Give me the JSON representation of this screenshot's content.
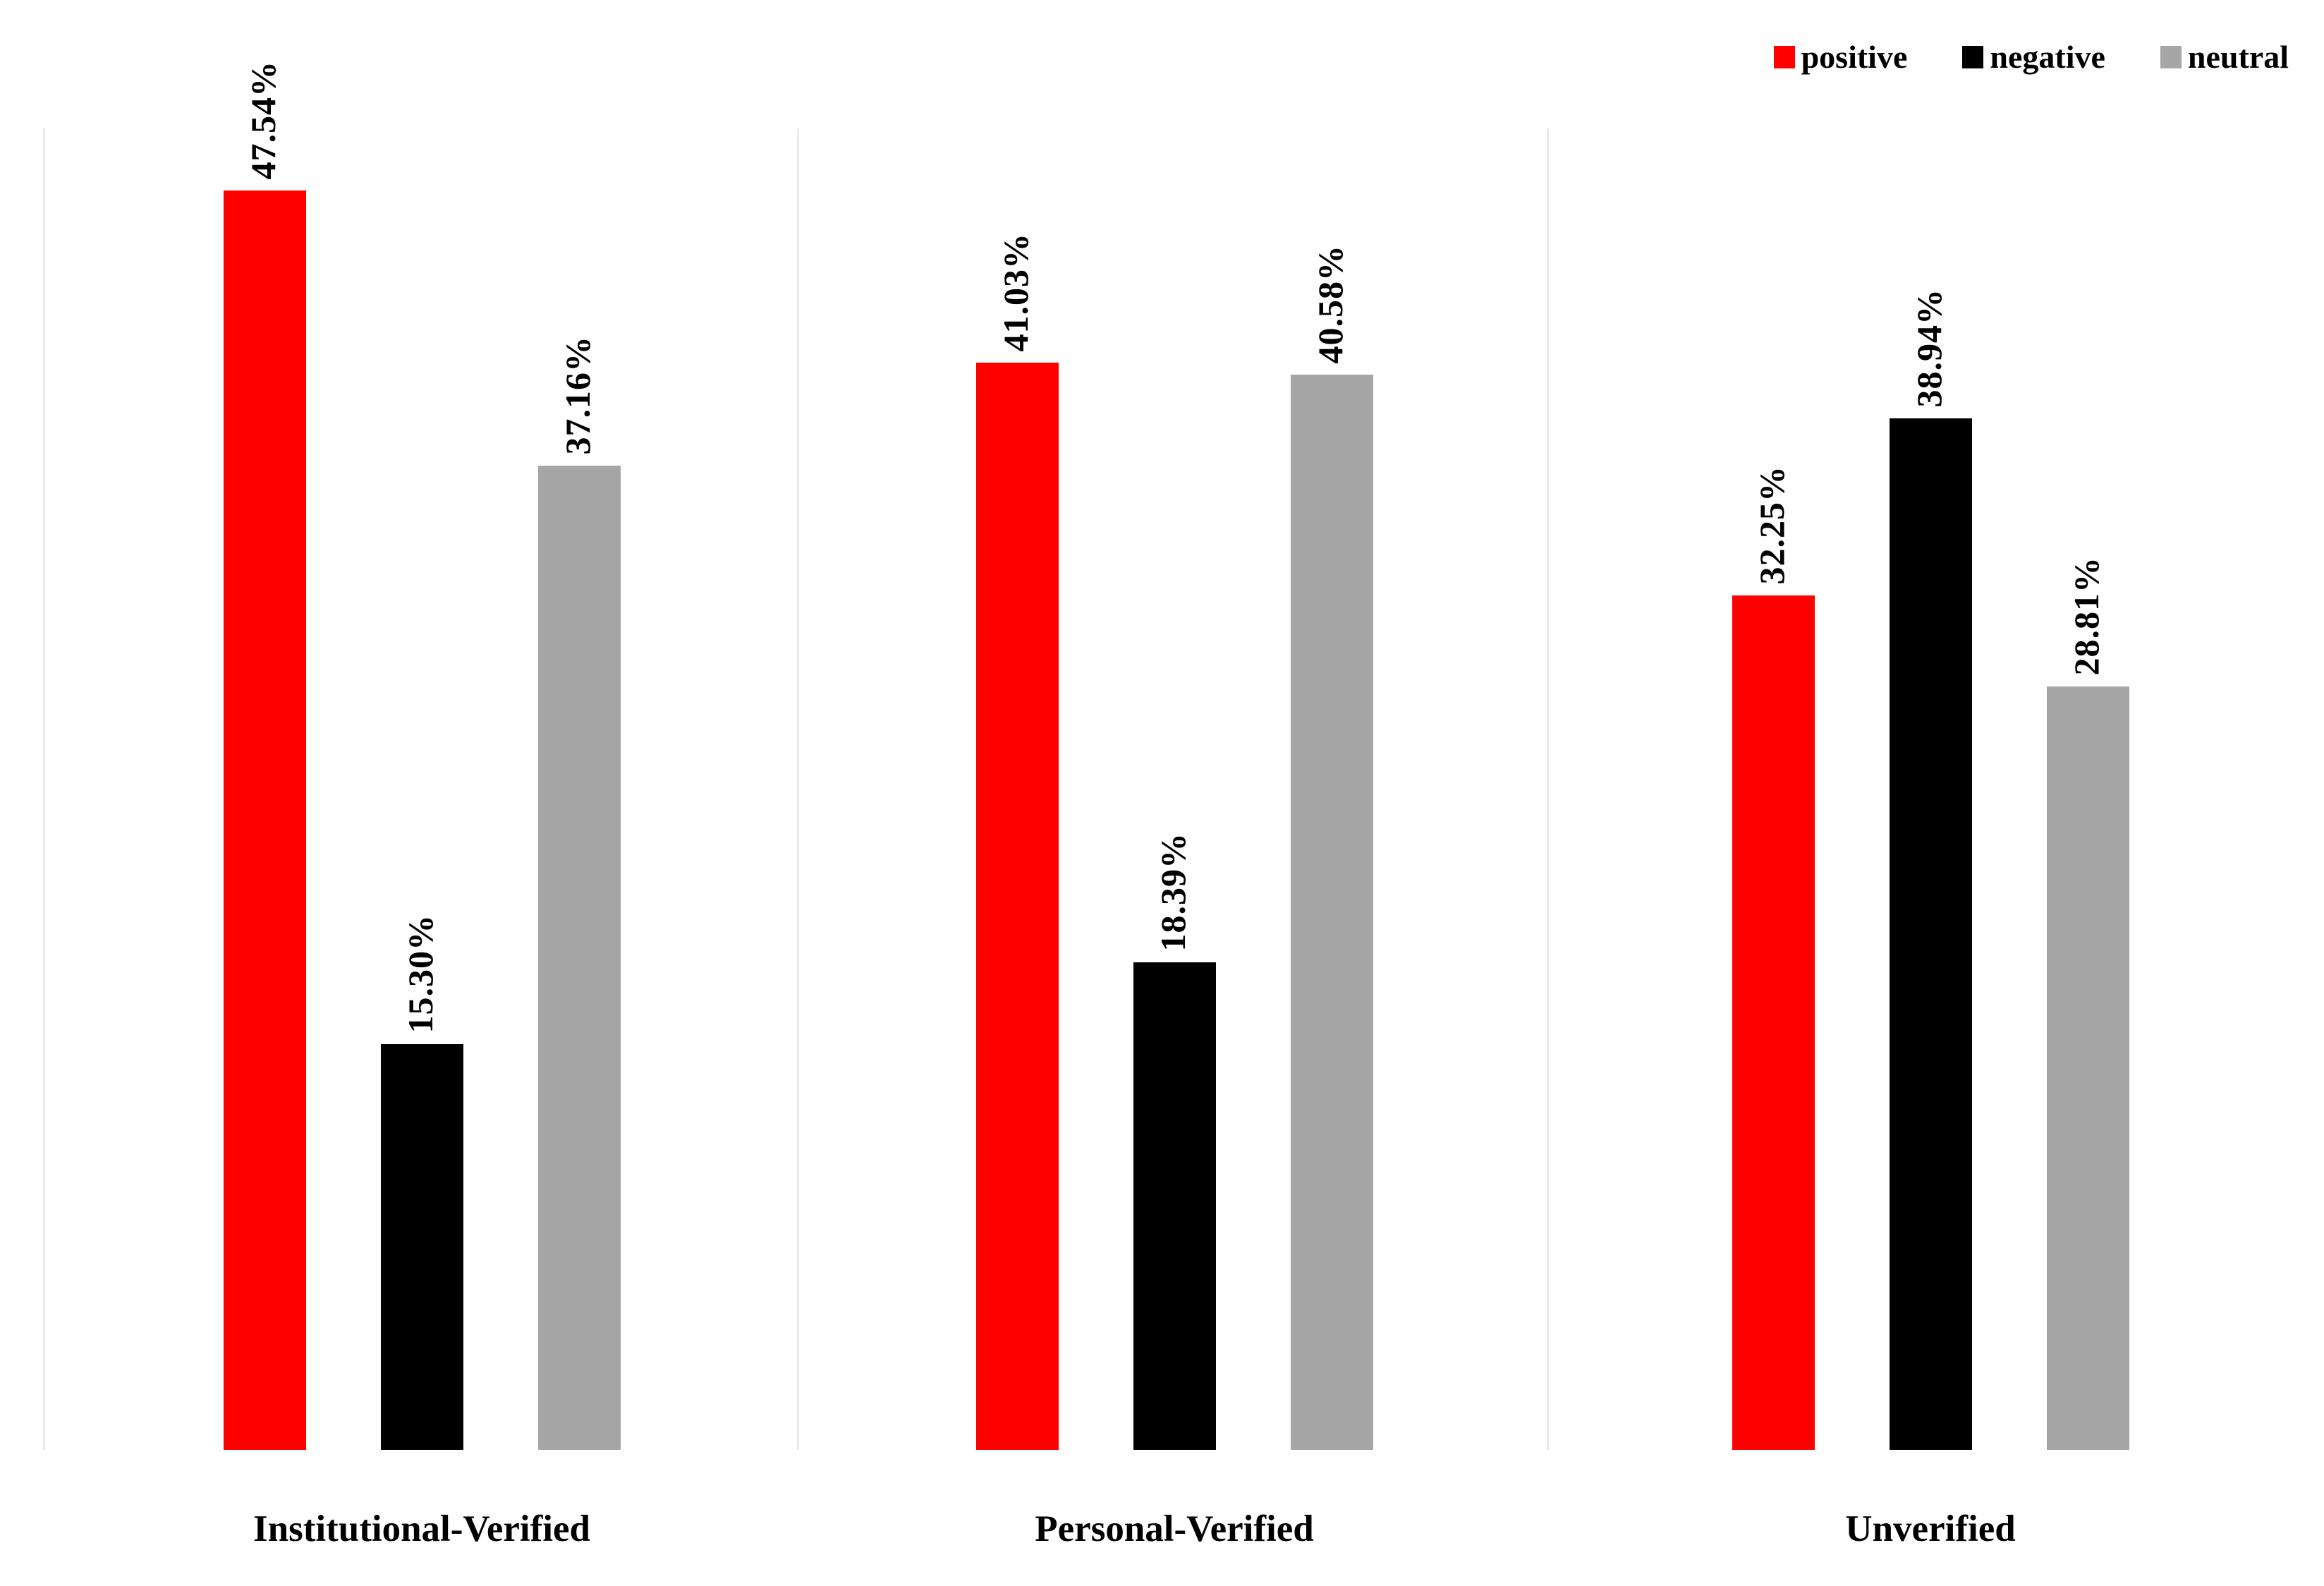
{
  "chart_data": {
    "type": "bar",
    "title": "",
    "xlabel": "",
    "ylabel": "",
    "categories": [
      "Institutional-Verified",
      "Personal-Verified",
      "Unverified"
    ],
    "series": [
      {
        "name": "positive",
        "color": "#ff0000",
        "values": [
          47.54,
          41.03,
          32.25
        ],
        "labels": [
          "47.54%",
          "41.03%",
          "32.25%"
        ]
      },
      {
        "name": "negative",
        "color": "#000000",
        "values": [
          15.3,
          18.39,
          38.94
        ],
        "labels": [
          "15.30%",
          "18.39%",
          "38.94%"
        ]
      },
      {
        "name": "neutral",
        "color": "#a6a6a6",
        "values": [
          37.16,
          40.58,
          28.81
        ],
        "labels": [
          "37.16%",
          "40.58%",
          "28.81%"
        ]
      }
    ],
    "ylim": [
      0,
      50
    ],
    "grid": false,
    "y_axis_visible": false,
    "legend_position": "top-right",
    "value_label_rotation": 90,
    "axis_line_color": "#e9e9e9",
    "background_color": "#ffffff"
  }
}
